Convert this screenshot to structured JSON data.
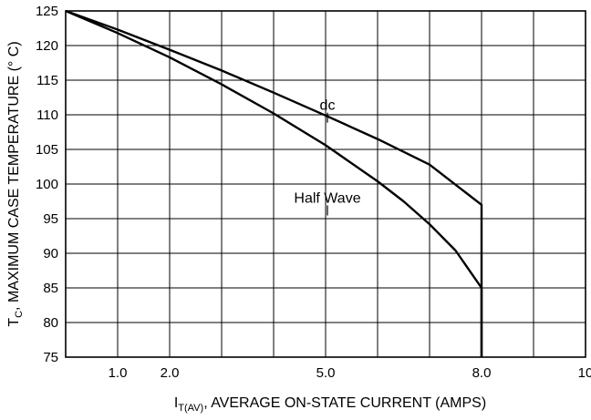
{
  "chart_data": {
    "type": "line",
    "xlabel": {
      "prefix": "I",
      "subscript": "T(AV)",
      "rest": ", AVERAGE ON-STATE CURRENT (AMPS)"
    },
    "ylabel": {
      "prefix": "T",
      "subscript": "C",
      "rest": ", MAXIMUM CASE TEMPERATURE (° C)"
    },
    "xlim": [
      0,
      10
    ],
    "ylim": [
      75,
      125
    ],
    "x_ticks": [
      1,
      2,
      3,
      4,
      5,
      6,
      7,
      8,
      9,
      10
    ],
    "x_tick_labels": [
      {
        "x": 1,
        "label": "1.0"
      },
      {
        "x": 2,
        "label": "2.0"
      },
      {
        "x": 5,
        "label": "5.0"
      },
      {
        "x": 8,
        "label": "8.0"
      },
      {
        "x": 10,
        "label": "10"
      }
    ],
    "y_ticks": [
      75,
      80,
      85,
      90,
      95,
      100,
      105,
      110,
      115,
      120,
      125
    ],
    "y_tick_labels": [
      "75",
      "80",
      "85",
      "90",
      "95",
      "100",
      "105",
      "110",
      "115",
      "120",
      "125"
    ],
    "grid": true,
    "series": [
      {
        "name": "dc",
        "x": [
          0,
          1,
          2,
          3,
          4,
          5,
          6,
          7,
          8,
          8
        ],
        "y": [
          125,
          122.3,
          119.4,
          116.4,
          113.2,
          109.9,
          106.5,
          102.8,
          97,
          75
        ]
      },
      {
        "name": "Half Wave",
        "x": [
          0,
          1,
          2,
          3,
          4,
          5,
          6,
          6.5,
          7,
          7.5,
          8,
          8
        ],
        "y": [
          125,
          121.8,
          118.3,
          114.4,
          110.2,
          105.6,
          100.4,
          97.5,
          94.2,
          90.4,
          85,
          75
        ]
      }
    ],
    "annotations": [
      {
        "text": "dc",
        "x": 5.0,
        "y": 110.7,
        "series": "dc"
      },
      {
        "text": "Half Wave",
        "x": 5.0,
        "y": 97.3,
        "series": "Half Wave"
      }
    ]
  }
}
